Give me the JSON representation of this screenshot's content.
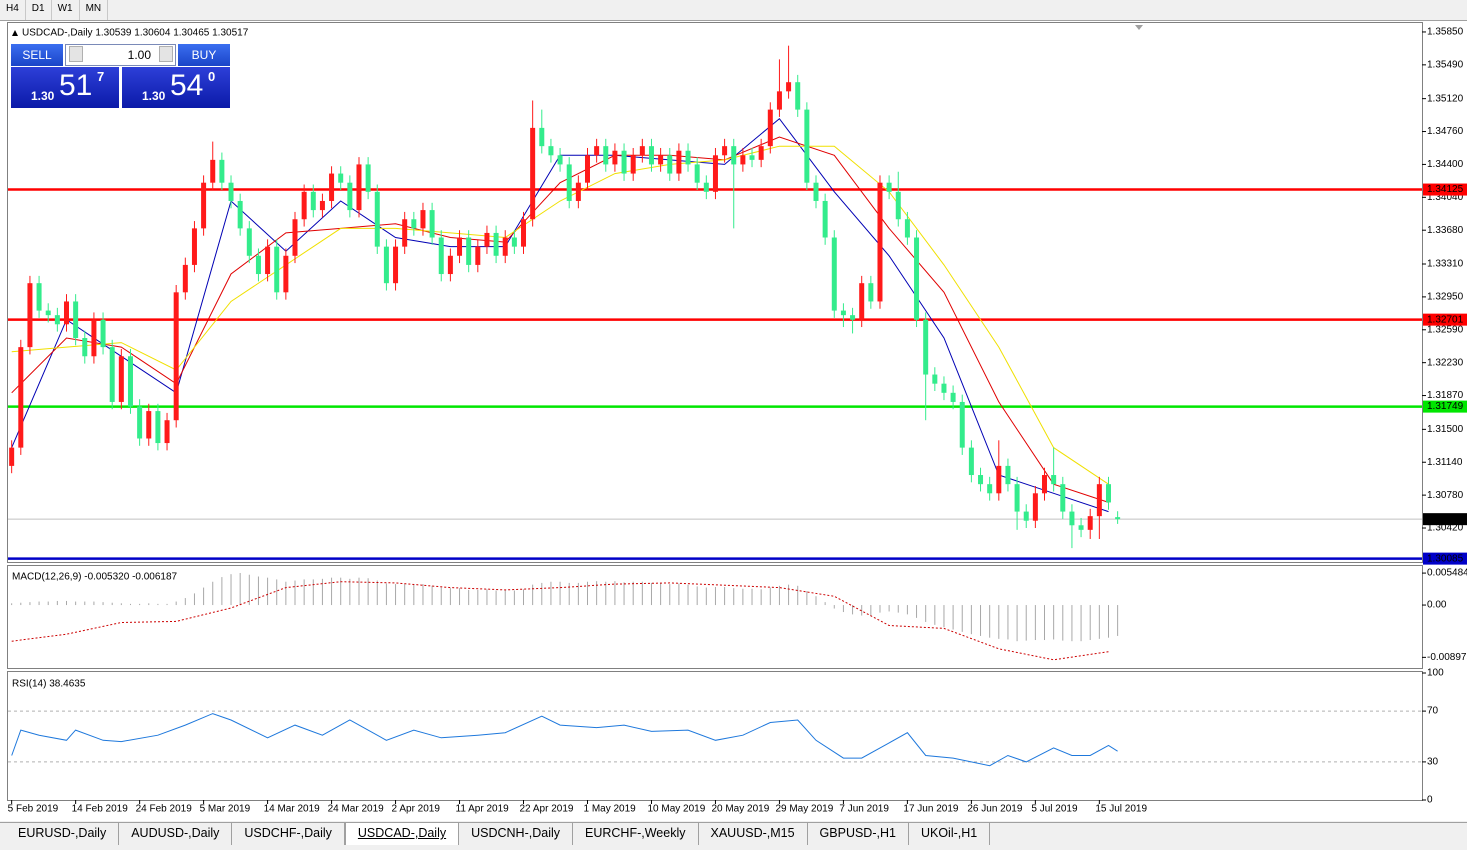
{
  "toolbar": [
    "H4",
    "D1",
    "W1",
    "MN"
  ],
  "trade_panel": {
    "sell": "SELL",
    "lot": "1.00",
    "buy": "BUY",
    "bid": {
      "big": "1.30",
      "pips": "51",
      "frac": "7"
    },
    "ask": {
      "big": "1.30",
      "pips": "54",
      "frac": "0"
    }
  },
  "tabs": [
    "EURUSD-,Daily",
    "AUDUSD-,Daily",
    "USDCHF-,Daily",
    "USDCAD-,Daily",
    "USDCNH-,Daily",
    "EURCHF-,Weekly",
    "XAUUSD-,M15",
    "GBPUSD-,H1",
    "UKOil-,H1"
  ],
  "active_tab": 3,
  "chart_data": [
    {
      "type": "candlestick",
      "title": "USDCAD-,Daily  1.30539 1.30604 1.30465 1.30517",
      "up_color": "#ff1a1a",
      "down_color": "#33ec8c",
      "xlim": [
        -0.4,
        154.3
      ],
      "ylim": [
        1.30048,
        1.35959
      ],
      "yticks": [
        {
          "value": 1.3585,
          "label": "1.35850"
        },
        {
          "value": 1.3549,
          "label": "1.35490"
        },
        {
          "value": 1.3512,
          "label": "1.35120"
        },
        {
          "value": 1.3476,
          "label": "1.34760"
        },
        {
          "value": 1.344,
          "label": "1.34400"
        },
        {
          "value": 1.3404,
          "label": "1.34040"
        },
        {
          "value": 1.3368,
          "label": "1.33680"
        },
        {
          "value": 1.3331,
          "label": "1.33310"
        },
        {
          "value": 1.3295,
          "label": "1.32950"
        },
        {
          "value": 1.3259,
          "label": "1.32590"
        },
        {
          "value": 1.3223,
          "label": "1.32230"
        },
        {
          "value": 1.3187,
          "label": "1.31870"
        },
        {
          "value": 1.315,
          "label": "1.31500"
        },
        {
          "value": 1.3114,
          "label": "1.31140"
        },
        {
          "value": 1.3078,
          "label": "1.30780"
        },
        {
          "value": 1.3042,
          "label": "1.30420"
        }
      ],
      "open": [
        1.311,
        1.313,
        1.324,
        1.331,
        1.328,
        1.3275,
        1.3265,
        1.329,
        1.325,
        1.323,
        1.327,
        1.324,
        1.318,
        1.323,
        1.3175,
        1.314,
        1.317,
        1.3135,
        1.316,
        1.33,
        1.333,
        1.337,
        1.342,
        1.3445,
        1.342,
        1.34,
        1.337,
        1.334,
        1.332,
        1.335,
        1.33,
        1.334,
        1.338,
        1.341,
        1.339,
        1.34,
        1.343,
        1.342,
        1.339,
        1.344,
        1.341,
        1.335,
        1.331,
        1.335,
        1.338,
        1.337,
        1.339,
        1.336,
        1.332,
        1.334,
        1.336,
        1.333,
        1.335,
        1.3365,
        1.334,
        1.336,
        1.335,
        1.338,
        1.348,
        1.346,
        1.345,
        1.344,
        1.34,
        1.342,
        1.345,
        1.346,
        1.344,
        1.3455,
        1.343,
        1.345,
        1.346,
        1.344,
        1.345,
        1.343,
        1.3455,
        1.344,
        1.342,
        1.341,
        1.345,
        1.346,
        1.344,
        1.345,
        1.3445,
        1.346,
        1.35,
        1.352,
        1.353,
        1.35,
        1.342,
        1.34,
        1.336,
        1.328,
        1.3275,
        1.327,
        1.331,
        1.329,
        1.342,
        1.341,
        1.338,
        1.336,
        1.327,
        1.321,
        1.32,
        1.319,
        1.318,
        1.313,
        1.31,
        1.309,
        1.308,
        1.311,
        1.309,
        1.306,
        1.305,
        1.308,
        1.31,
        1.309,
        1.306,
        1.3045,
        1.304,
        1.3055,
        1.309,
        1.30539
      ],
      "high": [
        1.3138,
        1.3248,
        1.3318,
        1.3318,
        1.3288,
        1.3283,
        1.3298,
        1.3298,
        1.3258,
        1.3278,
        1.3278,
        1.3248,
        1.3238,
        1.3238,
        1.3183,
        1.3178,
        1.3178,
        1.3168,
        1.3308,
        1.3338,
        1.3378,
        1.3428,
        1.3465,
        1.3453,
        1.3428,
        1.3408,
        1.3378,
        1.3348,
        1.3358,
        1.3358,
        1.3348,
        1.3388,
        1.3418,
        1.3418,
        1.3408,
        1.3438,
        1.3438,
        1.3428,
        1.3448,
        1.3448,
        1.3418,
        1.3358,
        1.3358,
        1.3388,
        1.3388,
        1.3398,
        1.3398,
        1.3368,
        1.3348,
        1.3368,
        1.3368,
        1.3358,
        1.3373,
        1.3373,
        1.3368,
        1.3368,
        1.3388,
        1.351,
        1.35,
        1.3468,
        1.3458,
        1.3448,
        1.3428,
        1.3458,
        1.3468,
        1.3468,
        1.3463,
        1.3463,
        1.3458,
        1.3468,
        1.3468,
        1.3458,
        1.3458,
        1.3463,
        1.3463,
        1.3448,
        1.3428,
        1.3458,
        1.3468,
        1.3468,
        1.3458,
        1.3458,
        1.3468,
        1.3508,
        1.3555,
        1.357,
        1.3538,
        1.3508,
        1.3428,
        1.3408,
        1.3368,
        1.3288,
        1.3283,
        1.3318,
        1.3318,
        1.3428,
        1.3428,
        1.3432,
        1.3388,
        1.3368,
        1.3278,
        1.3218,
        1.3208,
        1.3198,
        1.3188,
        1.3138,
        1.3108,
        1.3098,
        1.3138,
        1.3118,
        1.3098,
        1.3068,
        1.3088,
        1.3108,
        1.313,
        1.3098,
        1.3068,
        1.3053,
        1.3063,
        1.3098,
        1.3098,
        1.30604
      ],
      "low": [
        1.3102,
        1.3122,
        1.3232,
        1.3272,
        1.3267,
        1.3257,
        1.3257,
        1.3242,
        1.3222,
        1.3222,
        1.3232,
        1.3172,
        1.3172,
        1.3167,
        1.3132,
        1.3132,
        1.3127,
        1.3127,
        1.3152,
        1.3292,
        1.3322,
        1.3362,
        1.3412,
        1.3412,
        1.3392,
        1.3362,
        1.3332,
        1.3312,
        1.3312,
        1.3292,
        1.3292,
        1.3332,
        1.3372,
        1.3382,
        1.3382,
        1.3392,
        1.3412,
        1.3382,
        1.3382,
        1.3402,
        1.3342,
        1.3302,
        1.3302,
        1.3342,
        1.3362,
        1.3362,
        1.3352,
        1.3312,
        1.3312,
        1.3332,
        1.3322,
        1.3322,
        1.3342,
        1.3332,
        1.3332,
        1.3342,
        1.3342,
        1.3372,
        1.3452,
        1.3442,
        1.3432,
        1.3392,
        1.3392,
        1.3412,
        1.3442,
        1.3432,
        1.3432,
        1.3422,
        1.3422,
        1.3442,
        1.3432,
        1.3432,
        1.3422,
        1.3422,
        1.3432,
        1.3412,
        1.3402,
        1.3402,
        1.3442,
        1.337,
        1.3432,
        1.3437,
        1.3437,
        1.3452,
        1.3492,
        1.3512,
        1.3492,
        1.3412,
        1.3392,
        1.3352,
        1.3272,
        1.3262,
        1.3255,
        1.3262,
        1.3282,
        1.3282,
        1.3402,
        1.3372,
        1.3352,
        1.3262,
        1.316,
        1.3192,
        1.3182,
        1.3172,
        1.3122,
        1.3092,
        1.3082,
        1.3072,
        1.3072,
        1.3082,
        1.304,
        1.3042,
        1.3042,
        1.3072,
        1.3082,
        1.3052,
        1.302,
        1.3032,
        1.303,
        1.303,
        1.3062,
        1.30465
      ],
      "close": [
        1.313,
        1.324,
        1.331,
        1.328,
        1.3275,
        1.3265,
        1.329,
        1.325,
        1.323,
        1.327,
        1.324,
        1.318,
        1.323,
        1.3175,
        1.314,
        1.317,
        1.3135,
        1.316,
        1.33,
        1.333,
        1.337,
        1.342,
        1.3445,
        1.342,
        1.34,
        1.337,
        1.334,
        1.332,
        1.335,
        1.33,
        1.334,
        1.338,
        1.341,
        1.339,
        1.34,
        1.343,
        1.342,
        1.339,
        1.344,
        1.341,
        1.335,
        1.331,
        1.335,
        1.338,
        1.337,
        1.339,
        1.336,
        1.332,
        1.334,
        1.336,
        1.333,
        1.335,
        1.3365,
        1.334,
        1.336,
        1.335,
        1.338,
        1.348,
        1.346,
        1.345,
        1.344,
        1.34,
        1.342,
        1.345,
        1.346,
        1.344,
        1.3455,
        1.343,
        1.345,
        1.346,
        1.344,
        1.345,
        1.343,
        1.3455,
        1.344,
        1.342,
        1.341,
        1.345,
        1.346,
        1.344,
        1.345,
        1.3445,
        1.346,
        1.35,
        1.352,
        1.353,
        1.35,
        1.342,
        1.34,
        1.336,
        1.328,
        1.3275,
        1.327,
        1.331,
        1.329,
        1.342,
        1.341,
        1.338,
        1.336,
        1.327,
        1.321,
        1.32,
        1.319,
        1.318,
        1.313,
        1.31,
        1.309,
        1.308,
        1.311,
        1.309,
        1.306,
        1.305,
        1.308,
        1.31,
        1.309,
        1.306,
        1.3045,
        1.304,
        1.3055,
        1.309,
        1.307,
        1.30517
      ],
      "lines": [
        {
          "color": "#0000b4",
          "x": [
            0,
            6,
            12,
            18,
            24,
            30,
            36,
            42,
            48,
            54,
            60,
            66,
            72,
            78,
            84,
            90,
            96,
            102,
            108,
            114,
            120
          ],
          "values": [
            1.313,
            1.327,
            1.323,
            1.319,
            1.34,
            1.3345,
            1.34,
            1.336,
            1.335,
            1.335,
            1.345,
            1.345,
            1.3445,
            1.344,
            1.349,
            1.341,
            1.334,
            1.325,
            1.31,
            1.308,
            1.306
          ]
        },
        {
          "color": "#e00000",
          "x": [
            0,
            6,
            12,
            18,
            24,
            30,
            36,
            42,
            48,
            54,
            60,
            66,
            72,
            78,
            84,
            90,
            96,
            102,
            108,
            114,
            120
          ],
          "values": [
            1.319,
            1.325,
            1.324,
            1.32,
            1.332,
            1.3365,
            1.337,
            1.3375,
            1.336,
            1.3355,
            1.342,
            1.345,
            1.345,
            1.3445,
            1.347,
            1.345,
            1.337,
            1.33,
            1.318,
            1.309,
            1.307
          ]
        },
        {
          "color": "#f0e000",
          "x": [
            0,
            6,
            12,
            18,
            24,
            30,
            36,
            42,
            48,
            54,
            60,
            66,
            72,
            78,
            84,
            90,
            96,
            102,
            108,
            114,
            120
          ],
          "values": [
            1.3235,
            1.324,
            1.3245,
            1.3215,
            1.329,
            1.333,
            1.337,
            1.337,
            1.3365,
            1.336,
            1.34,
            1.343,
            1.344,
            1.3445,
            1.346,
            1.346,
            1.341,
            1.333,
            1.324,
            1.313,
            1.309
          ]
        }
      ],
      "levels": [
        {
          "value": 1.34125,
          "color": "#ff0000",
          "label_bg": "#ff0000"
        },
        {
          "value": 1.32701,
          "color": "#ff0000",
          "label_bg": "#ff0000"
        },
        {
          "value": 1.31749,
          "color": "#00e600",
          "label_bg": "#00e600"
        },
        {
          "value": 1.30085,
          "color": "#0000c8",
          "label_bg": "#0000c8"
        },
        {
          "value": 1.30517,
          "color": "#c0c0c0",
          "label_bg": "#000000"
        }
      ]
    },
    {
      "type": "macd",
      "title": "MACD(12,26,9) -0.005320 -0.006187",
      "xlim": [
        -0.4,
        154.3
      ],
      "ylim": [
        -0.0108,
        0.0067
      ],
      "yticks": [
        0.005484,
        {
          "value": 0,
          "label": "0.00"
        },
        -0.008973
      ],
      "bar_color": "#a8a8a8",
      "values": [
        0.0003,
        0.0004,
        0.0005,
        0.0006,
        0.0006,
        0.0007,
        0.0007,
        0.0006,
        0.0006,
        0.0006,
        0.0005,
        0.0004,
        0.0003,
        0.0002,
        0.0002,
        0.0003,
        0.0002,
        0.0002,
        0.0006,
        0.0012,
        0.002,
        0.003,
        0.004,
        0.0048,
        0.0053,
        0.0055,
        0.0052,
        0.0049,
        0.0047,
        0.0044,
        0.004,
        0.0042,
        0.0044,
        0.0044,
        0.0045,
        0.0047,
        0.0047,
        0.0045,
        0.0047,
        0.0046,
        0.0042,
        0.0037,
        0.0036,
        0.0036,
        0.0035,
        0.0036,
        0.0033,
        0.003,
        0.0029,
        0.0029,
        0.0026,
        0.0026,
        0.0027,
        0.0025,
        0.0026,
        0.0025,
        0.0027,
        0.0035,
        0.0038,
        0.004,
        0.004,
        0.0038,
        0.0038,
        0.004,
        0.0041,
        0.004,
        0.0041,
        0.0039,
        0.004,
        0.004,
        0.0038,
        0.0038,
        0.0036,
        0.0037,
        0.0035,
        0.0032,
        0.003,
        0.0031,
        0.0031,
        0.0029,
        0.0028,
        0.0028,
        0.0027,
        0.003,
        0.0033,
        0.0035,
        0.0033,
        0.0024,
        0.0015,
        0.0005,
        -0.0006,
        -0.0012,
        -0.0016,
        -0.0018,
        -0.0019,
        -0.0013,
        -0.0011,
        -0.0013,
        -0.0016,
        -0.0022,
        -0.0029,
        -0.0034,
        -0.0038,
        -0.0042,
        -0.0046,
        -0.005,
        -0.0053,
        -0.0056,
        -0.0058,
        -0.0059,
        -0.0062,
        -0.0061,
        -0.006,
        -0.006,
        -0.0059,
        -0.0061,
        -0.0062,
        -0.0062,
        -0.006,
        -0.0058,
        -0.0056,
        -0.0053
      ],
      "signal": {
        "color": "#cc0000",
        "x": [
          0,
          6,
          12,
          18,
          24,
          30,
          36,
          42,
          48,
          54,
          60,
          66,
          72,
          78,
          84,
          90,
          96,
          102,
          108,
          114,
          120
        ],
        "values": [
          -0.0062,
          -0.005,
          -0.003,
          -0.0028,
          -0.0005,
          0.003,
          0.004,
          0.0038,
          0.003,
          0.0026,
          0.003,
          0.0036,
          0.0038,
          0.0034,
          0.003,
          0.0015,
          -0.0035,
          -0.004,
          -0.0075,
          -0.0094,
          -0.008
        ]
      }
    },
    {
      "type": "line",
      "title": "RSI(14) 38.4635",
      "xlim": [
        -0.4,
        154.3
      ],
      "ylim": [
        0,
        100
      ],
      "yticks": [
        100,
        70,
        30,
        0
      ],
      "color": "#1e78dc",
      "x": [
        0,
        1,
        3,
        6,
        7,
        10,
        12,
        16,
        19,
        22,
        24,
        28,
        31,
        34,
        37,
        41,
        44,
        47,
        51,
        54,
        58,
        60,
        64,
        67,
        70,
        74,
        77,
        80,
        83,
        86,
        88,
        91,
        93,
        96,
        98,
        100,
        103,
        107,
        109,
        111,
        114,
        116,
        118,
        120,
        121
      ],
      "values": [
        35,
        55,
        51,
        47,
        55,
        47,
        46,
        51,
        59,
        68,
        63,
        49,
        59,
        51,
        63,
        47,
        55,
        49,
        51,
        53,
        66,
        59,
        57,
        59,
        54,
        55,
        47,
        51,
        61,
        63,
        47,
        33,
        33,
        45,
        53,
        35,
        33,
        27,
        35,
        30,
        41,
        35,
        35,
        43,
        38.4635
      ],
      "xticks": [
        {
          "value": 0,
          "label": "5 Feb 2019"
        },
        {
          "value": 7,
          "label": "14 Feb 2019"
        },
        {
          "value": 14,
          "label": "24 Feb 2019"
        },
        {
          "value": 21,
          "label": "5 Mar 2019"
        },
        {
          "value": 28,
          "label": "14 Mar 2019"
        },
        {
          "value": 35,
          "label": "24 Mar 2019"
        },
        {
          "value": 42,
          "label": "2 Apr 2019"
        },
        {
          "value": 49,
          "label": "11 Apr 2019"
        },
        {
          "value": 56,
          "label": "22 Apr 2019"
        },
        {
          "value": 63,
          "label": "1 May 2019"
        },
        {
          "value": 70,
          "label": "10 May 2019"
        },
        {
          "value": 77,
          "label": "20 May 2019"
        },
        {
          "value": 84,
          "label": "29 May 2019"
        },
        {
          "value": 91,
          "label": "7 Jun 2019"
        },
        {
          "value": 98,
          "label": "17 Jun 2019"
        },
        {
          "value": 105,
          "label": "26 Jun 2019"
        },
        {
          "value": 112,
          "label": "5 Jul 2019"
        },
        {
          "value": 119,
          "label": "15 Jul 2019"
        }
      ]
    }
  ]
}
